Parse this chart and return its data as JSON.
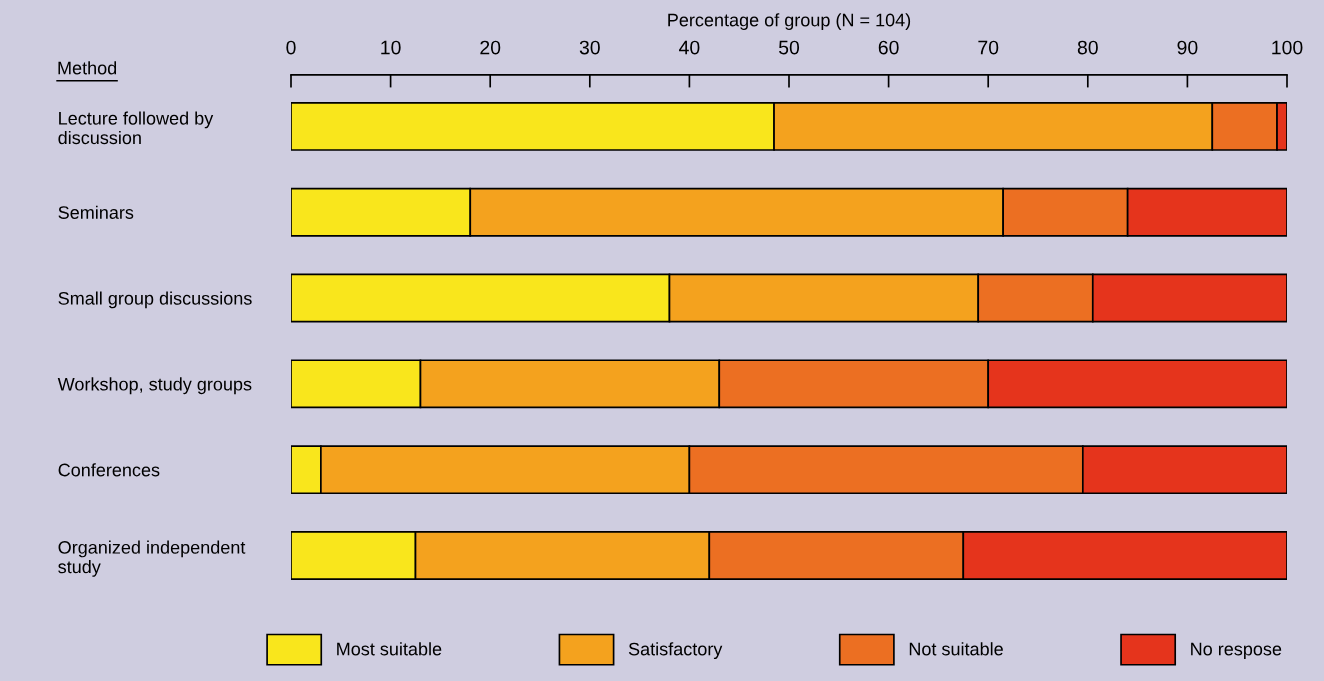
{
  "chart_data": {
    "type": "bar",
    "orientation": "horizontal",
    "stacked": true,
    "xlabel": "Percentage of group (N = 104)",
    "ylabel": "Method",
    "categories": [
      "Lecture followed by\ndiscussion",
      "Seminars",
      "Small group discussions",
      "Workshop, study groups",
      "Conferences",
      "Organized independent\nstudy"
    ],
    "series": [
      {
        "name": "Most suitable",
        "color": "#f9e61c",
        "values": [
          48.5,
          18,
          38,
          13,
          3,
          12.5
        ]
      },
      {
        "name": "Satisfactory",
        "color": "#f4a21e",
        "values": [
          44,
          53.5,
          31,
          30,
          37,
          29.5
        ]
      },
      {
        "name": "Not suitable",
        "color": "#ec6f22",
        "values": [
          6.5,
          12.5,
          11.5,
          27,
          39.5,
          25.5
        ]
      },
      {
        "name": "No respose",
        "color": "#e5341c",
        "values": [
          1,
          16,
          19.5,
          30,
          20.5,
          32.5
        ]
      }
    ],
    "xlim": [
      0,
      100
    ],
    "xticks": [
      0,
      10,
      20,
      30,
      40,
      50,
      60,
      70,
      80,
      90,
      100
    ],
    "grid": false,
    "legend": "bottom"
  }
}
